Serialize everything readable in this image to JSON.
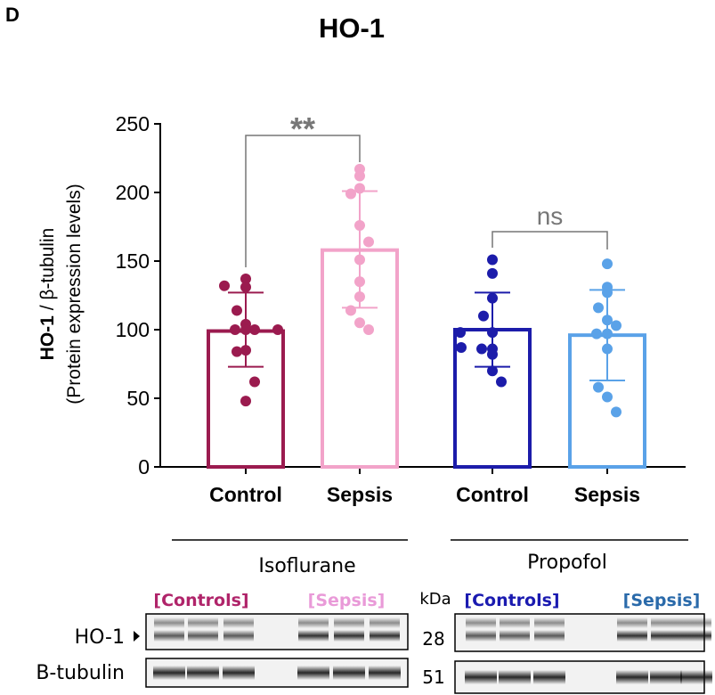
{
  "panel_label": "D",
  "chart_data": {
    "type": "bar",
    "title": "HO-1",
    "ylabel_bold": "HO-1",
    "ylabel_rest": " / β-tubulin",
    "ylabel_line2": "(Protein expression levels)",
    "ylim": [
      0,
      250
    ],
    "yticks": [
      0,
      50,
      100,
      150,
      200,
      250
    ],
    "grid": false,
    "categories": [
      "Control",
      "Sepsis",
      "Control",
      "Sepsis"
    ],
    "series": [
      {
        "group": "Isoflurane",
        "category": "Control",
        "color": "#9b1b4f",
        "mean": 99,
        "sd_low": 73,
        "sd_high": 127,
        "points": [
          137,
          131,
          132,
          114,
          104,
          100,
          100,
          100,
          100,
          84,
          85,
          62,
          48
        ]
      },
      {
        "group": "Isoflurane",
        "category": "Sepsis",
        "color": "#f2a3c9",
        "mean": 158,
        "sd_low": 116,
        "sd_high": 201,
        "points": [
          217,
          212,
          203,
          199,
          176,
          164,
          151,
          135,
          124,
          114,
          105,
          100
        ]
      },
      {
        "group": "Propofol",
        "category": "Control",
        "color": "#1c1caa",
        "mean": 100,
        "sd_low": 73,
        "sd_high": 127,
        "points": [
          151,
          141,
          123,
          110,
          98,
          98,
          86,
          86,
          82,
          87,
          70,
          62
        ]
      },
      {
        "group": "Propofol",
        "category": "Sepsis",
        "color": "#5aa2e8",
        "mean": 96,
        "sd_low": 63,
        "sd_high": 129,
        "points": [
          148,
          131,
          127,
          116,
          107,
          103,
          97,
          97,
          86,
          58,
          51,
          40
        ]
      }
    ],
    "annotations": [
      {
        "between": [
          0,
          1
        ],
        "text": "**"
      },
      {
        "between": [
          2,
          3
        ],
        "text": "ns"
      }
    ]
  },
  "blot": {
    "groups": [
      "Isoflurane",
      "Propofol"
    ],
    "iso_controls": "[Controls]",
    "iso_sepsis": "[Sepsis]",
    "prop_controls": "[Controls]",
    "prop_sepsis": "[Sepsis]",
    "kda": "kDa",
    "row1": "HO-1",
    "row2": "B-tubulin",
    "mw1": "28",
    "mw2": "51",
    "colors": {
      "iso_controls": "#b0246a",
      "iso_sepsis": "#e99ad8",
      "prop_controls": "#1a1ab0",
      "prop_sepsis": "#2a6aaa"
    }
  }
}
